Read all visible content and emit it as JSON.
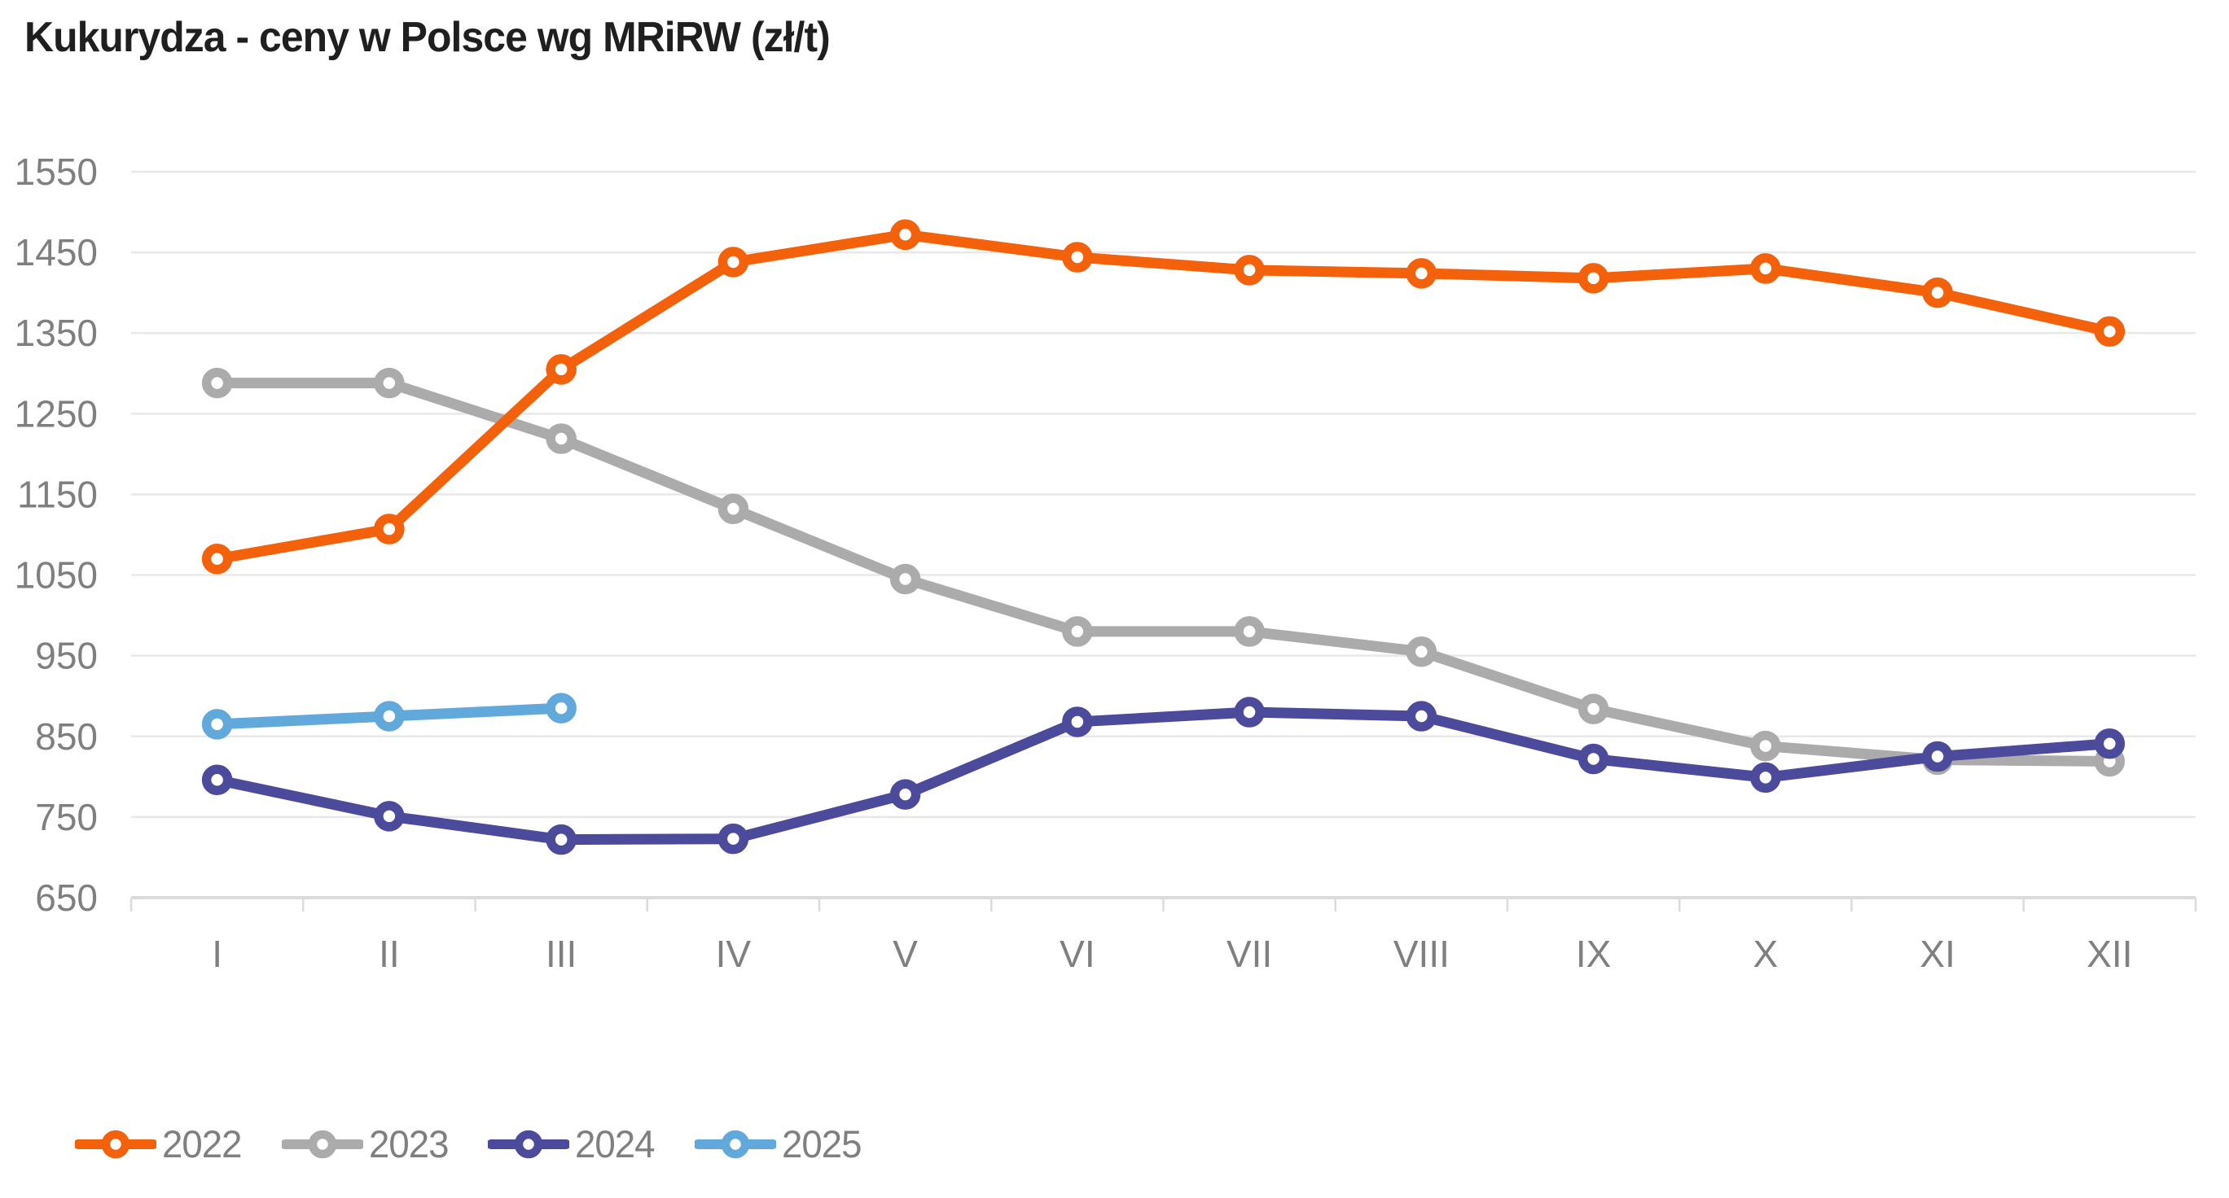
{
  "title": "Kukurydza - ceny w Polsce wg MRiRW (zł/t)",
  "chart_data": {
    "type": "line",
    "title": "Kukurydza - ceny w Polsce wg MRiRW (zł/t)",
    "unit": "zł/t",
    "categories": [
      "I",
      "II",
      "III",
      "IV",
      "V",
      "VI",
      "VII",
      "VIII",
      "IX",
      "X",
      "XI",
      "XII"
    ],
    "y_ticks": [
      1550,
      1450,
      1350,
      1250,
      1150,
      1050,
      950,
      850,
      750,
      650
    ],
    "ylim": [
      650,
      1550
    ],
    "grid": "horizontal-only",
    "legend_position": "bottom-left",
    "marker": "open-circle",
    "series": [
      {
        "name": "2022",
        "color": "#f4610b",
        "values": [
          1070,
          1107,
          1305,
          1438,
          1472,
          1444,
          1428,
          1424,
          1418,
          1430,
          1400,
          1352
        ]
      },
      {
        "name": "2023",
        "color": "#ababab",
        "values": [
          1288,
          1288,
          1219,
          1132,
          1045,
          980,
          980,
          955,
          884,
          838,
          821,
          819
        ]
      },
      {
        "name": "2024",
        "color": "#4c4a9b",
        "values": [
          796,
          751,
          722,
          723,
          778,
          868,
          880,
          875,
          822,
          799,
          825,
          841
        ]
      },
      {
        "name": "2025",
        "color": "#61a8db",
        "values": [
          865,
          875,
          885
        ]
      }
    ],
    "colors": {
      "gridline": "#e8e8e8",
      "axis_line": "#dbdbdb",
      "tick_label": "#7f7f7f",
      "title_text": "#1f1f1f"
    }
  }
}
